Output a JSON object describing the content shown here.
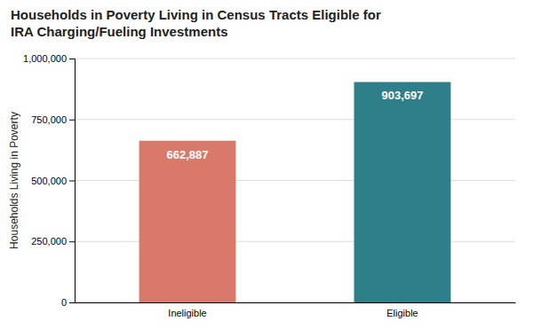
{
  "chart_data": {
    "type": "bar",
    "title": "Households in Poverty Living in Census Tracts Eligible for\nIRA Charging/Fueling Investments",
    "categories": [
      "Ineligible",
      "Eligible"
    ],
    "values": [
      662887,
      903697
    ],
    "value_labels": [
      "662,887",
      "903,697"
    ],
    "colors": [
      "#d9796a",
      "#2e7f8a"
    ],
    "ylabel": "Households Living in Poverty",
    "ylim": [
      0,
      1000000
    ],
    "yticks": [
      0,
      {
        "value": 250000,
        "label": "250,000"
      },
      {
        "value": 500000,
        "label": "500,000"
      },
      {
        "value": 750000,
        "label": "750,000"
      },
      {
        "value": 1000000,
        "label": "1,000,000"
      }
    ],
    "grid": true,
    "data_labels": true
  }
}
